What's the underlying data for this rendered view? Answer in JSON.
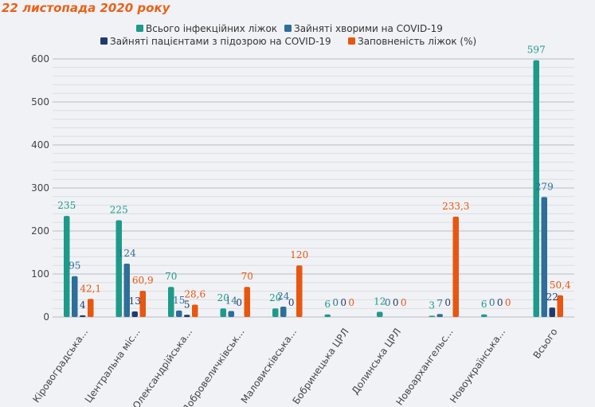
{
  "title": "22 листопада 2020 року",
  "chart_data": {
    "type": "bar",
    "title": "22 листопада 2020 року",
    "xlabel": "",
    "ylabel": "",
    "ylim": [
      0,
      600
    ],
    "yticks": [
      0,
      100,
      200,
      300,
      400,
      500,
      600
    ],
    "grid": true,
    "legend_position": "top-center",
    "categories": [
      "Кіровоградська...",
      "Центральна міс...",
      "Олександрійська...",
      "Добровеличківськ...",
      "Маловисківська...",
      "Бобринецька ЦРЛ",
      "Долинська ЦРЛ",
      "Новоархангельс...",
      "Новоукраїнська...",
      "Всього"
    ],
    "series": [
      {
        "name": "Всього інфекційних ліжок",
        "color": "#1e9a8a",
        "values": [
          235,
          225,
          70,
          20,
          20,
          6,
          12,
          3,
          6,
          597
        ],
        "labels": [
          "235",
          "225",
          "70",
          "20",
          "20",
          "6",
          "12",
          "3",
          "6",
          "597"
        ]
      },
      {
        "name": "Зайняті хворими на COVID-19",
        "color": "#2e6e99",
        "values": [
          95,
          124,
          15,
          14,
          24,
          0,
          0,
          7,
          0,
          279
        ],
        "labels": [
          "95",
          "124",
          "15",
          "14",
          "24",
          "0",
          "0",
          "7",
          "0",
          "279"
        ]
      },
      {
        "name": "Зайняті пацієнтами з підозрою на COVID-19",
        "color": "#1f3a6e",
        "values": [
          4,
          13,
          5,
          0,
          0,
          0,
          0,
          0,
          0,
          22
        ],
        "labels": [
          "4",
          "13",
          "5",
          "0",
          "0",
          "0",
          "0",
          "0",
          "0",
          "22"
        ]
      },
      {
        "name": "Заповненість ліжок (%)",
        "color": "#e8560f",
        "values": [
          42.1,
          60.9,
          28.6,
          70,
          120,
          0,
          0,
          233.3,
          0,
          50.4
        ],
        "labels": [
          "42,1",
          "60,9",
          "28,6",
          "70",
          "120",
          "0",
          "0",
          "233,3",
          "0",
          "50,4"
        ]
      }
    ]
  }
}
